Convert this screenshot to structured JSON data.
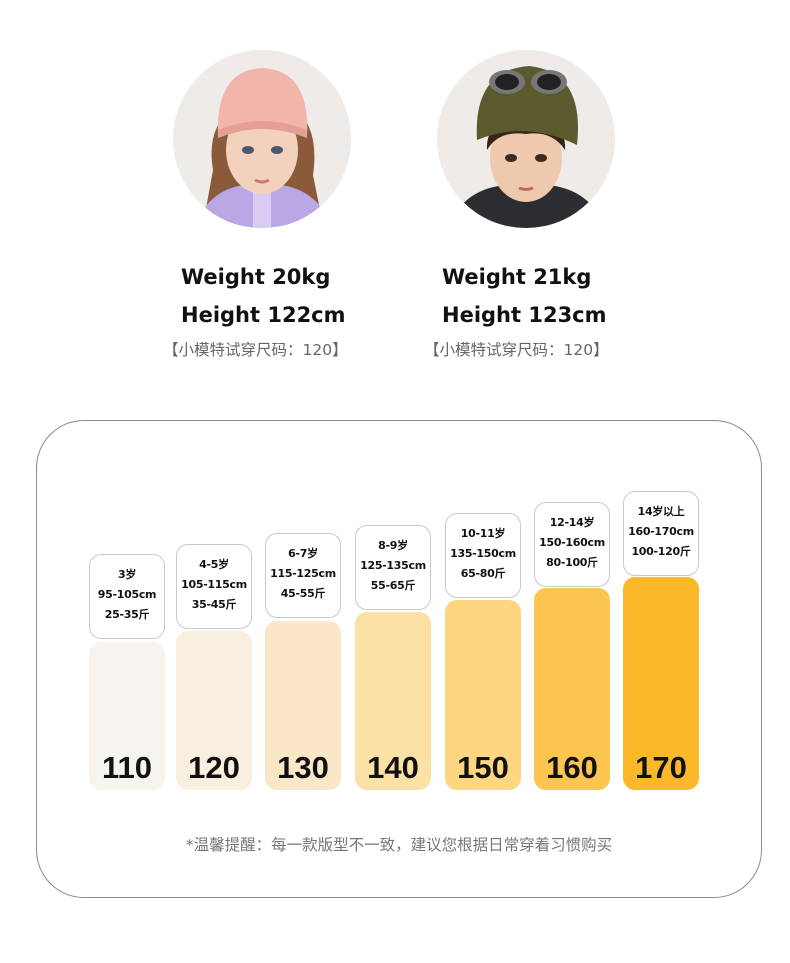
{
  "models": [
    {
      "weight": "Weight  20kg",
      "height": "Height  122cm",
      "tryon": "【小模特试穿尺码：120】"
    },
    {
      "weight": "Weight  21kg",
      "height": "Height  123cm",
      "tryon": "【小模特试穿尺码：120】"
    }
  ],
  "sizes": [
    {
      "size": "110",
      "age": "3岁",
      "height_range": "95-105cm",
      "weight_range": "25-35斤",
      "color": "#f7f4ef"
    },
    {
      "size": "120",
      "age": "4-5岁",
      "height_range": "105-115cm",
      "weight_range": "35-45斤",
      "color": "#f9efdf"
    },
    {
      "size": "130",
      "age": "6-7岁",
      "height_range": "115-125cm",
      "weight_range": "45-55斤",
      "color": "#fae7c7"
    },
    {
      "size": "140",
      "age": "8-9岁",
      "height_range": "125-135cm",
      "weight_range": "55-65斤",
      "color": "#fbe1a6"
    },
    {
      "size": "150",
      "age": "10-11岁",
      "height_range": "135-150cm",
      "weight_range": "65-80斤",
      "color": "#fcd681"
    },
    {
      "size": "160",
      "age": "12-14岁",
      "height_range": "150-160cm",
      "weight_range": "80-100斤",
      "color": "#fcc54f"
    },
    {
      "size": "170",
      "age": "14岁以上",
      "height_range": "160-170cm",
      "weight_range": "100-120斤",
      "color": "#fbb829"
    }
  ],
  "tip": "*温馨提醒：每一款版型不一致，建议您根据日常穿着习惯购买"
}
